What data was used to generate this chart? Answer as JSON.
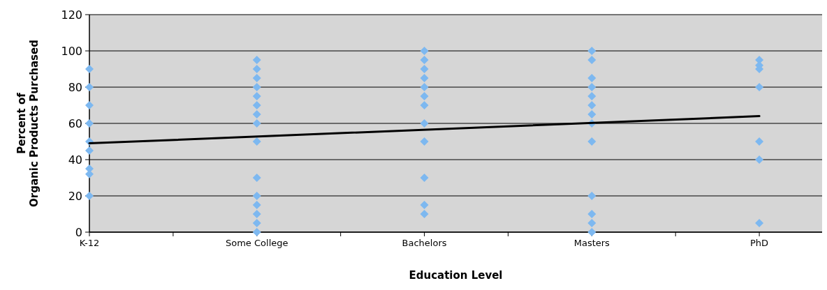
{
  "chart_data": {
    "type": "scatter",
    "xlabel": "Education Level",
    "ylabel": "Percent of Organic Products Purchased",
    "categories": [
      "K-12",
      "Some College",
      "Bachelors",
      "Masters",
      "PhD"
    ],
    "ylim": [
      0,
      120
    ],
    "yticks": [
      0,
      20,
      40,
      60,
      80,
      100,
      120
    ],
    "grid": "y",
    "marker": "diamond",
    "series": [
      {
        "color": "#7db8f0",
        "x": [
          "K-12",
          "K-12",
          "K-12",
          "K-12",
          "K-12",
          "K-12",
          "K-12",
          "K-12",
          "K-12",
          "Some College",
          "Some College",
          "Some College",
          "Some College",
          "Some College",
          "Some College",
          "Some College",
          "Some College",
          "Some College",
          "Some College",
          "Some College",
          "Some College",
          "Some College",
          "Some College",
          "Some College",
          "Bachelors",
          "Bachelors",
          "Bachelors",
          "Bachelors",
          "Bachelors",
          "Bachelors",
          "Bachelors",
          "Bachelors",
          "Bachelors",
          "Bachelors",
          "Bachelors",
          "Bachelors",
          "Masters",
          "Masters",
          "Masters",
          "Masters",
          "Masters",
          "Masters",
          "Masters",
          "Masters",
          "Masters",
          "Masters",
          "Masters",
          "Masters",
          "Masters",
          "PhD",
          "PhD",
          "PhD",
          "PhD",
          "PhD",
          "PhD",
          "PhD"
        ],
        "values": [
          90,
          80,
          70,
          60,
          50,
          45,
          35,
          32,
          20,
          95,
          90,
          85,
          80,
          75,
          70,
          65,
          60,
          50,
          30,
          20,
          15,
          10,
          5,
          0,
          100,
          95,
          90,
          85,
          80,
          75,
          70,
          60,
          50,
          30,
          15,
          10,
          100,
          95,
          85,
          80,
          75,
          70,
          65,
          60,
          50,
          20,
          10,
          5,
          0,
          95,
          92,
          90,
          80,
          50,
          40,
          5
        ]
      },
      {
        "type": "line",
        "color": "#000000",
        "marker": "none",
        "line_style": "solid",
        "x": [
          "K-12",
          "PhD"
        ],
        "values": [
          49,
          64
        ]
      }
    ]
  }
}
